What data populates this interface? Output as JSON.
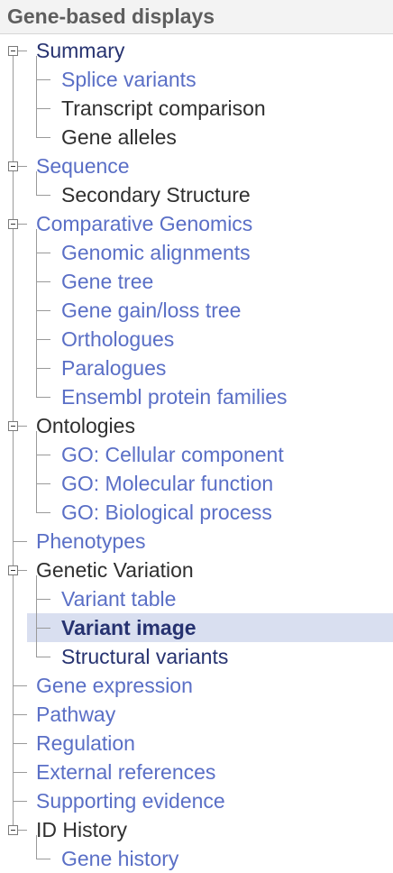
{
  "header": {
    "title": "Gene-based displays"
  },
  "tree": [
    {
      "label": "Summary",
      "style": "navy",
      "expandable": true,
      "children": [
        {
          "label": "Splice variants",
          "style": "link"
        },
        {
          "label": "Transcript comparison",
          "style": "dark"
        },
        {
          "label": "Gene alleles",
          "style": "dark"
        }
      ]
    },
    {
      "label": "Sequence",
      "style": "link",
      "expandable": true,
      "children": [
        {
          "label": "Secondary Structure",
          "style": "dark"
        }
      ]
    },
    {
      "label": "Comparative Genomics",
      "style": "link",
      "expandable": true,
      "children": [
        {
          "label": "Genomic alignments",
          "style": "link"
        },
        {
          "label": "Gene tree",
          "style": "link"
        },
        {
          "label": "Gene gain/loss tree",
          "style": "link"
        },
        {
          "label": "Orthologues",
          "style": "link"
        },
        {
          "label": "Paralogues",
          "style": "link"
        },
        {
          "label": "Ensembl protein families",
          "style": "link"
        }
      ]
    },
    {
      "label": "Ontologies",
      "style": "dark",
      "expandable": true,
      "children": [
        {
          "label": "GO: Cellular component",
          "style": "link"
        },
        {
          "label": "GO: Molecular function",
          "style": "link"
        },
        {
          "label": "GO: Biological process",
          "style": "link"
        }
      ]
    },
    {
      "label": "Phenotypes",
      "style": "link",
      "expandable": false,
      "children": []
    },
    {
      "label": "Genetic Variation",
      "style": "dark",
      "expandable": true,
      "children": [
        {
          "label": "Variant table",
          "style": "link"
        },
        {
          "label": "Variant image",
          "style": "active",
          "selected": true
        },
        {
          "label": "Structural variants",
          "style": "navy"
        }
      ]
    },
    {
      "label": "Gene expression",
      "style": "link",
      "expandable": false,
      "children": []
    },
    {
      "label": "Pathway",
      "style": "link",
      "expandable": false,
      "children": []
    },
    {
      "label": "Regulation",
      "style": "link",
      "expandable": false,
      "children": []
    },
    {
      "label": "External references",
      "style": "link",
      "expandable": false,
      "children": []
    },
    {
      "label": "Supporting evidence",
      "style": "link",
      "expandable": false,
      "children": []
    },
    {
      "label": "ID History",
      "style": "dark",
      "expandable": true,
      "children": [
        {
          "label": "Gene history",
          "style": "link"
        }
      ]
    }
  ]
}
